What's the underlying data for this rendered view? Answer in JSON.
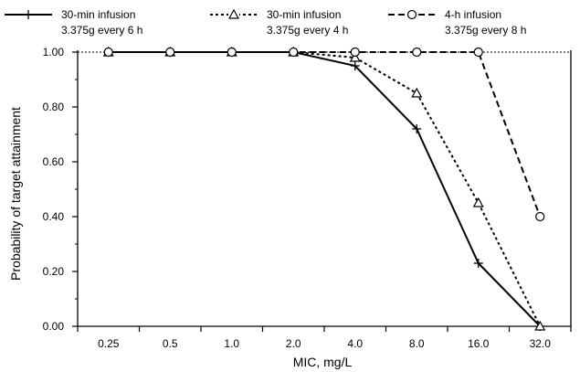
{
  "chart_data": {
    "type": "line",
    "xlabel": "MIC, mg/L",
    "ylabel": "Probability of target attainment",
    "categories": [
      "0.25",
      "0.5",
      "1.0",
      "2.0",
      "4.0",
      "8.0",
      "16.0",
      "32.0"
    ],
    "y_ticks": [
      "0.00",
      "0.20",
      "0.40",
      "0.60",
      "0.80",
      "1.00"
    ],
    "ylim": [
      0,
      1
    ],
    "grid": false,
    "reference_line": 1.0,
    "legend_position": "top",
    "series": [
      {
        "name": "30-min infusion 3.375g every 6 h",
        "label_line1": "30-min infusion",
        "label_line2": "3.375g every 6 h",
        "marker": "plus",
        "line_style": "solid",
        "values": [
          1.0,
          1.0,
          1.0,
          1.0,
          0.95,
          0.72,
          0.23,
          0.0
        ]
      },
      {
        "name": "30-min infusion 3.375g every 4 h",
        "label_line1": "30-min infusion",
        "label_line2": "3.375g every 4 h",
        "marker": "triangle",
        "line_style": "dotted",
        "values": [
          1.0,
          1.0,
          1.0,
          1.0,
          0.98,
          0.85,
          0.45,
          0.0
        ]
      },
      {
        "name": "4-h infusion 3.375g every 8 h",
        "label_line1": "4-h infusion",
        "label_line2": "3.375g every 8 h",
        "marker": "circle",
        "line_style": "dashed",
        "values": [
          1.0,
          1.0,
          1.0,
          1.0,
          1.0,
          1.0,
          1.0,
          0.4
        ]
      }
    ]
  }
}
